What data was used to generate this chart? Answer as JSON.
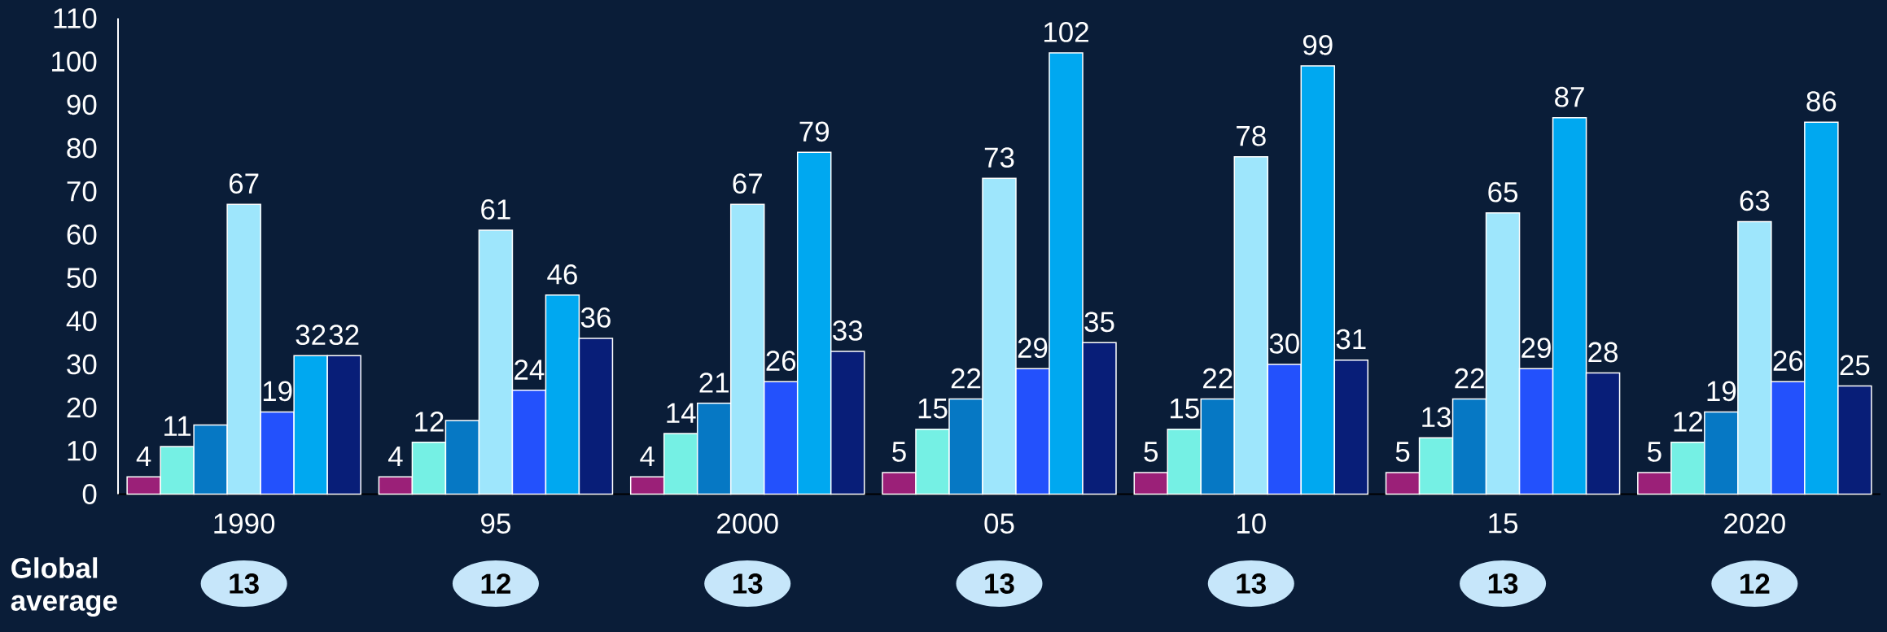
{
  "chart_data": {
    "type": "bar",
    "categories": [
      "1990",
      "95",
      "2000",
      "05",
      "10",
      "15",
      "2020"
    ],
    "ylim": [
      0,
      110
    ],
    "yticks": [
      0,
      10,
      20,
      30,
      40,
      50,
      60,
      70,
      80,
      90,
      100,
      110
    ],
    "series": [
      {
        "color": "#9b2078",
        "values": [
          4,
          4,
          4,
          5,
          5,
          5,
          5
        ],
        "value_labels": [
          "4",
          "4",
          "4",
          "5",
          "5",
          "5",
          "5"
        ]
      },
      {
        "color": "#75f0e4",
        "values": [
          11,
          12,
          14,
          15,
          15,
          13,
          12
        ],
        "value_labels": [
          "11",
          "12",
          "14",
          "15",
          "15",
          "13",
          "12"
        ]
      },
      {
        "color": "#0678c4",
        "values": [
          16,
          17,
          21,
          22,
          22,
          22,
          19
        ],
        "value_labels": [
          null,
          null,
          "21",
          "22",
          "22",
          "22",
          "19"
        ]
      },
      {
        "color": "#9ee6fc",
        "values": [
          67,
          61,
          67,
          73,
          78,
          65,
          63
        ],
        "value_labels": [
          "67",
          "61",
          "67",
          "73",
          "78",
          "65",
          "63"
        ]
      },
      {
        "color": "#2351fc",
        "values": [
          19,
          24,
          26,
          29,
          30,
          29,
          26
        ],
        "value_labels": [
          "19",
          "24",
          "26",
          "29",
          "30",
          "29",
          "26"
        ]
      },
      {
        "color": "#00a8f0",
        "values": [
          32,
          46,
          79,
          102,
          99,
          87,
          86
        ],
        "value_labels": [
          "32",
          "46",
          "79",
          "102",
          "99",
          "87",
          "86"
        ]
      },
      {
        "color": "#081e78",
        "values": [
          32,
          36,
          33,
          35,
          31,
          28,
          25
        ],
        "value_labels": [
          "32",
          "36",
          "33",
          "35",
          "31",
          "28",
          "25"
        ]
      }
    ],
    "annotations": [
      "Global average",
      "13",
      "12",
      "13",
      "13",
      "13",
      "13",
      "12"
    ]
  }
}
